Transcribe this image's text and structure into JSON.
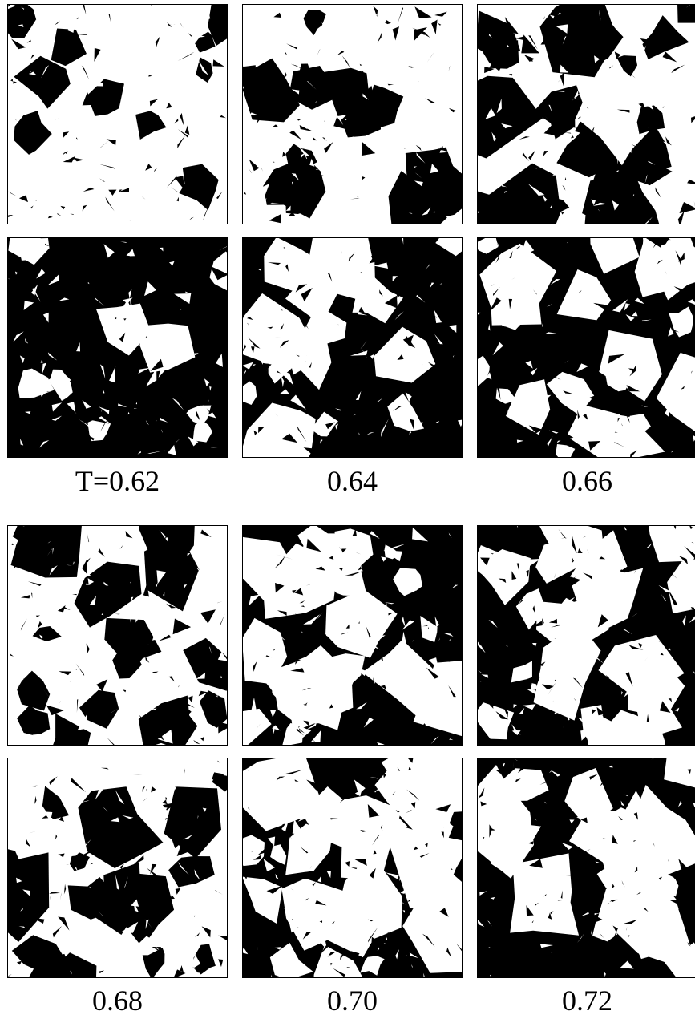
{
  "figure": {
    "groups": [
      {
        "labels": [
          "T=0.62",
          "0.64",
          "0.66"
        ],
        "panels": [
          {
            "row": 0,
            "col": 0,
            "black_fraction": 0.12,
            "seed": 11
          },
          {
            "row": 0,
            "col": 1,
            "black_fraction": 0.3,
            "seed": 23
          },
          {
            "row": 0,
            "col": 2,
            "black_fraction": 0.45,
            "seed": 37
          },
          {
            "row": 1,
            "col": 0,
            "black_fraction": 0.88,
            "seed": 41
          },
          {
            "row": 1,
            "col": 1,
            "black_fraction": 0.65,
            "seed": 53
          },
          {
            "row": 1,
            "col": 2,
            "black_fraction": 0.55,
            "seed": 67
          }
        ]
      },
      {
        "labels": [
          "0.68",
          "0.70",
          "0.72"
        ],
        "panels": [
          {
            "row": 0,
            "col": 0,
            "black_fraction": 0.35,
            "seed": 71
          },
          {
            "row": 0,
            "col": 1,
            "black_fraction": 0.5,
            "seed": 83
          },
          {
            "row": 0,
            "col": 2,
            "black_fraction": 0.55,
            "seed": 97
          },
          {
            "row": 1,
            "col": 0,
            "black_fraction": 0.45,
            "seed": 101
          },
          {
            "row": 1,
            "col": 1,
            "black_fraction": 0.5,
            "seed": 113
          },
          {
            "row": 1,
            "col": 2,
            "black_fraction": 0.55,
            "seed": 127
          }
        ]
      }
    ],
    "colors": {
      "foreground": "#000000",
      "background": "#ffffff"
    }
  }
}
